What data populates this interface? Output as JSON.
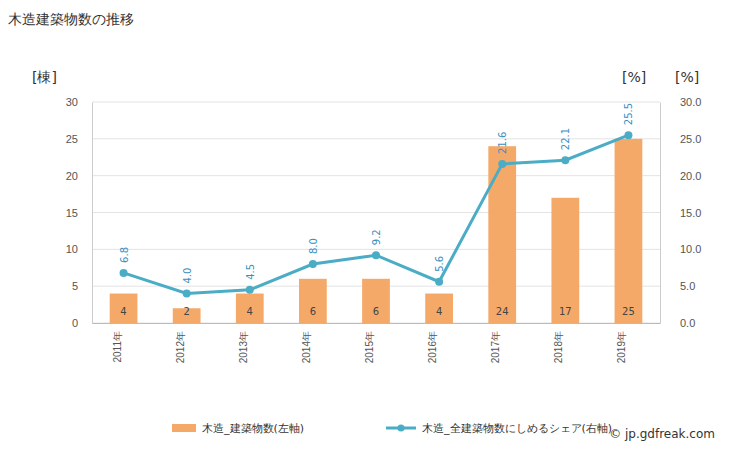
{
  "chart_data": {
    "type": "bar",
    "title": "木造建築物数の推移",
    "y_label": "[棟]",
    "y2_label": "[%]",
    "categories": [
      "2011年",
      "2012年",
      "2013年",
      "2014年",
      "2015年",
      "2016年",
      "2017年",
      "2018年",
      "2019年"
    ],
    "series": [
      {
        "name": "木造_建築物数(左軸)",
        "type": "bar",
        "axis": "y",
        "color": "#f5a969",
        "values": [
          4,
          2,
          4,
          6,
          6,
          4,
          24,
          17,
          25
        ]
      },
      {
        "name": "木造_全建築物数にしめるシェア(右軸)",
        "type": "line",
        "axis": "y2",
        "color": "#4bacc6",
        "marker": "circle",
        "values": [
          6.8,
          4.0,
          4.5,
          8.0,
          9.2,
          5.6,
          21.6,
          22.1,
          25.5
        ],
        "value_labels": [
          "6.8",
          "4.0",
          "4.5",
          "8.0",
          "9.2",
          "5.6",
          "21.6",
          "22.1",
          "25.5"
        ]
      }
    ],
    "ylim": [
      0,
      30
    ],
    "yticks": [
      0,
      5,
      10,
      15,
      20,
      25,
      30
    ],
    "y2lim": [
      0,
      30
    ],
    "y2ticks": [
      {
        "value": 0,
        "label": "0.0"
      },
      {
        "value": 5,
        "label": "5.0"
      },
      {
        "value": 10,
        "label": "10.0"
      },
      {
        "value": 15,
        "label": "15.0"
      },
      {
        "value": 20,
        "label": "20.0"
      },
      {
        "value": 25,
        "label": "25.0"
      },
      {
        "value": 30,
        "label": "30.0"
      }
    ],
    "grid": true,
    "data_labels": true,
    "legend": "bottom",
    "annotations": [
      "© jp.gdfreak.com"
    ]
  }
}
